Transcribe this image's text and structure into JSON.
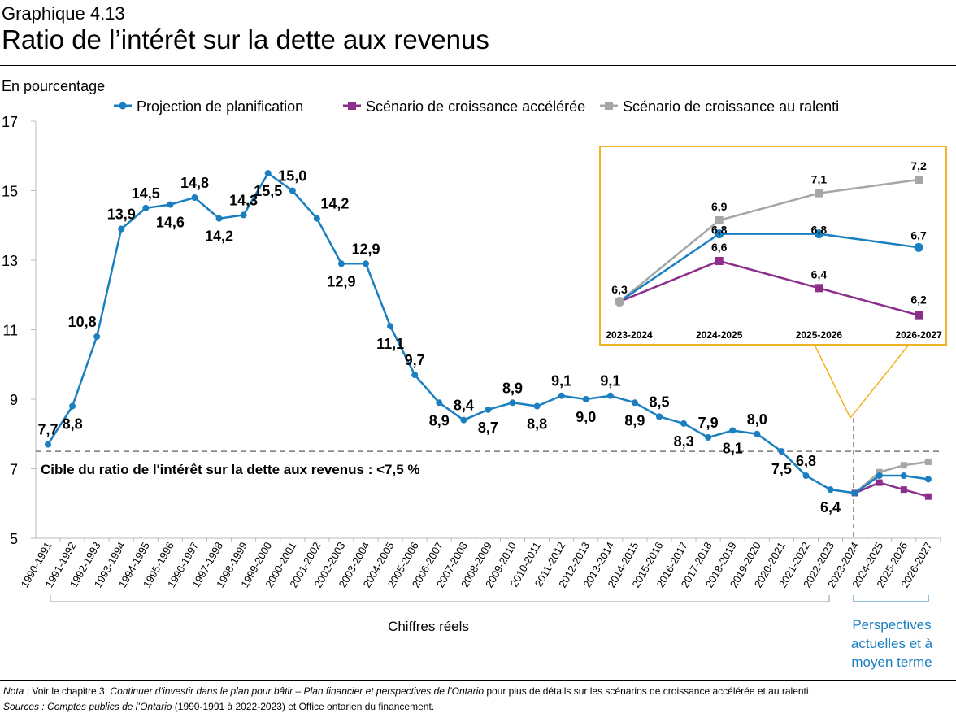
{
  "header": {
    "subtitle": "Graphique 4.13",
    "title": "Ratio de l’intérêt sur la dette aux revenus"
  },
  "chart_data": {
    "type": "line",
    "ylabel": "En pourcentage",
    "ylim": [
      5,
      17
    ],
    "yticks": [
      5,
      7,
      9,
      11,
      13,
      15,
      17
    ],
    "categories": [
      "1990-1991",
      "1991-1992",
      "1992-1993",
      "1993-1994",
      "1994-1995",
      "1995-1996",
      "1996-1997",
      "1997-1998",
      "1998-1999",
      "1999-2000",
      "2000-2001",
      "2001-2002",
      "2002-2003",
      "2003-2004",
      "2004-2005",
      "2005-2006",
      "2006-2007",
      "2007-2008",
      "2008-2009",
      "2009-2010",
      "2010-2011",
      "2011-2012",
      "2012-2013",
      "2013-2014",
      "2014-2015",
      "2015-2016",
      "2016-2017",
      "2017-2018",
      "2018-2019",
      "2019-2020",
      "2020-2021",
      "2021-2022",
      "2022-2023",
      "2023-2024",
      "2024-2025",
      "2025-2026",
      "2026-2027"
    ],
    "series": [
      {
        "name": "Projection de planification",
        "color": "#1a7fc1",
        "values": [
          7.7,
          8.8,
          10.8,
          13.9,
          14.5,
          14.6,
          14.8,
          14.2,
          14.3,
          15.5,
          15.0,
          14.2,
          12.9,
          12.9,
          11.1,
          9.7,
          8.9,
          8.4,
          8.7,
          8.9,
          8.8,
          9.1,
          9.0,
          9.1,
          8.9,
          8.5,
          8.3,
          7.9,
          8.1,
          8.0,
          7.5,
          6.8,
          6.4,
          6.3,
          6.8,
          6.8,
          6.7
        ]
      },
      {
        "name": "Scénario de croissance accélérée",
        "color": "#8b2f8b",
        "values": [
          null,
          null,
          null,
          null,
          null,
          null,
          null,
          null,
          null,
          null,
          null,
          null,
          null,
          null,
          null,
          null,
          null,
          null,
          null,
          null,
          null,
          null,
          null,
          null,
          null,
          null,
          null,
          null,
          null,
          null,
          null,
          null,
          null,
          6.3,
          6.6,
          6.4,
          6.2
        ]
      },
      {
        "name": "Scénario de croissance au ralenti",
        "color": "#a6a6a6",
        "values": [
          null,
          null,
          null,
          null,
          null,
          null,
          null,
          null,
          null,
          null,
          null,
          null,
          null,
          null,
          null,
          null,
          null,
          null,
          null,
          null,
          null,
          null,
          null,
          null,
          null,
          null,
          null,
          null,
          null,
          null,
          null,
          null,
          null,
          6.3,
          6.9,
          7.1,
          7.2
        ]
      }
    ],
    "target_line": {
      "value": 7.5,
      "label": "Cible du ratio de l'intérêt sur la dette aux revenus : <7,5 %"
    },
    "period_labels": {
      "actual": "Chiffres réels",
      "outlook": [
        "Perspectives",
        "actuelles et à",
        "moyen terme"
      ]
    },
    "inset": {
      "categories": [
        "2023-2024",
        "2024-2025",
        "2025-2026",
        "2026-2027"
      ],
      "frame_color": "#f0b323"
    },
    "legend": "top",
    "grid": false
  },
  "footer": {
    "nota_label": "Nota :",
    "nota_pre": " Voir le chapitre 3, ",
    "nota_italic": "Continuer d’investir dans le plan pour bâtir – Plan financier et perspectives de l’Ontario",
    "nota_post": " pour plus de détails sur les scénarios de croissance accélérée et au ralenti.",
    "sources_label": "Sources :",
    "sources_italic": " Comptes publics de l’Ontario",
    "sources_post": " (1990-1991  à 2022-2023)  et Office ontarien du financement."
  }
}
